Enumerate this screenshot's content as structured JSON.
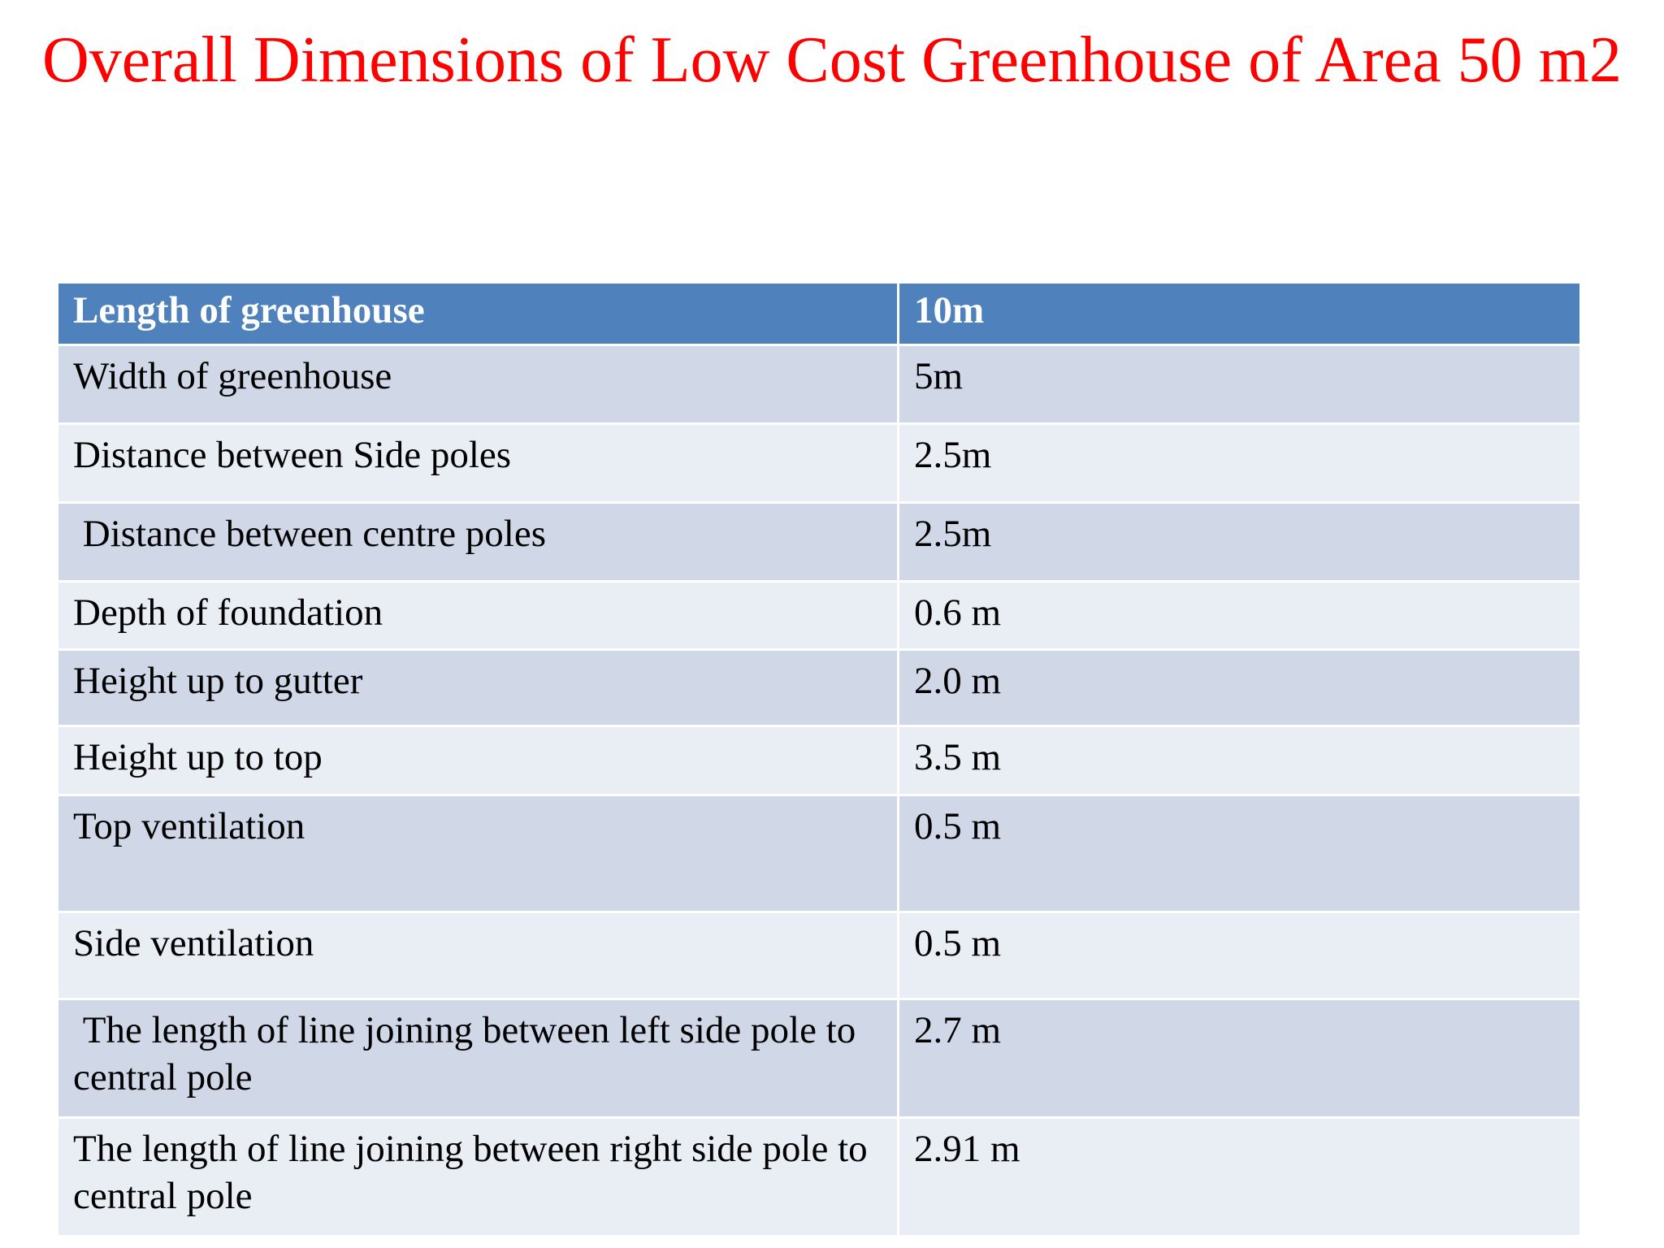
{
  "title": "Overall Dimensions of Low Cost Greenhouse of Area 50 m2",
  "table": {
    "header": [
      "Length of greenhouse",
      "10m"
    ],
    "rows": [
      [
        "Width of greenhouse",
        "5m"
      ],
      [
        "Distance between Side poles",
        "2.5m"
      ],
      [
        " Distance between centre poles",
        "2.5m"
      ],
      [
        "Depth of foundation",
        "0.6 m"
      ],
      [
        "Height up to gutter",
        "2.0 m"
      ],
      [
        "Height up to top",
        "3.5 m"
      ],
      [
        "Top ventilation",
        "0.5 m"
      ],
      [
        "Side ventilation",
        "0.5 m"
      ],
      [
        " The length of line joining between left side pole to central pole",
        "2.7 m"
      ],
      [
        "The length of line joining between right side pole to central pole",
        "2.91 m"
      ]
    ]
  }
}
